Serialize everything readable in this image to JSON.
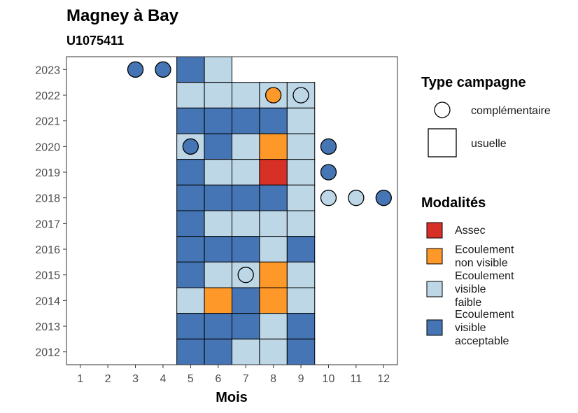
{
  "chart_data": {
    "type": "heatmap",
    "title": "Magney à Bay",
    "subtitle": "U1075411",
    "xlabel": "Mois",
    "ylabel": "",
    "x_ticks": [
      "1",
      "2",
      "3",
      "4",
      "5",
      "6",
      "7",
      "8",
      "9",
      "10",
      "11",
      "12"
    ],
    "y_ticks": [
      "2012",
      "2013",
      "2014",
      "2015",
      "2016",
      "2017",
      "2018",
      "2019",
      "2020",
      "2021",
      "2022",
      "2023"
    ],
    "xlim": [
      0.5,
      12.5
    ],
    "ylim": [
      2011.5,
      2023.5
    ],
    "grid": false,
    "legend_placement": "right",
    "legend_campagne": {
      "title": "Type campagne",
      "items": [
        {
          "key": "complementaire",
          "shape": "circle",
          "label": "complémentaire"
        },
        {
          "key": "usuelle",
          "shape": "square",
          "label": "usuelle"
        }
      ]
    },
    "legend_modalites": {
      "title": "Modalités",
      "items": [
        {
          "code": "A",
          "lines": [
            "Assec"
          ],
          "color": "#d73027"
        },
        {
          "code": "ENV",
          "lines": [
            "Ecoulement",
            "non visible"
          ],
          "color": "#fe9929"
        },
        {
          "code": "EVF",
          "lines": [
            "Ecoulement",
            "visible",
            "faible"
          ],
          "color": "#bdd7e7"
        },
        {
          "code": "EVA",
          "lines": [
            "Ecoulement",
            "visible",
            "acceptable"
          ],
          "color": "#4575b4"
        }
      ]
    },
    "usuelle": [
      {
        "year": 2023,
        "cells": [
          [
            "EVA",
            5
          ],
          [
            "EVF",
            6
          ]
        ]
      },
      {
        "year": 2022,
        "cells": [
          [
            "EVF",
            5
          ],
          [
            "EVF",
            6
          ],
          [
            "EVF",
            7
          ],
          [
            "EVF",
            8
          ],
          [
            "EVF",
            9
          ]
        ]
      },
      {
        "year": 2021,
        "cells": [
          [
            "EVA",
            5
          ],
          [
            "EVA",
            6
          ],
          [
            "EVA",
            7
          ],
          [
            "EVA",
            8
          ],
          [
            "EVF",
            9
          ]
        ]
      },
      {
        "year": 2020,
        "cells": [
          [
            "EVF",
            5
          ],
          [
            "EVA",
            6
          ],
          [
            "EVF",
            7
          ],
          [
            "ENV",
            8
          ],
          [
            "EVF",
            9
          ]
        ]
      },
      {
        "year": 2019,
        "cells": [
          [
            "EVA",
            5
          ],
          [
            "EVF",
            6
          ],
          [
            "EVF",
            7
          ],
          [
            "A",
            8
          ],
          [
            "EVF",
            9
          ]
        ]
      },
      {
        "year": 2018,
        "cells": [
          [
            "EVA",
            5
          ],
          [
            "EVA",
            6
          ],
          [
            "EVA",
            7
          ],
          [
            "EVA",
            8
          ],
          [
            "EVF",
            9
          ]
        ]
      },
      {
        "year": 2017,
        "cells": [
          [
            "EVA",
            5
          ],
          [
            "EVF",
            6
          ],
          [
            "EVF",
            7
          ],
          [
            "EVF",
            8
          ],
          [
            "EVF",
            9
          ]
        ]
      },
      {
        "year": 2016,
        "cells": [
          [
            "EVA",
            5
          ],
          [
            "EVA",
            6
          ],
          [
            "EVA",
            7
          ],
          [
            "EVF",
            8
          ],
          [
            "EVA",
            9
          ]
        ]
      },
      {
        "year": 2015,
        "cells": [
          [
            "EVA",
            5
          ],
          [
            "EVF",
            6
          ],
          [
            "EVF",
            7
          ],
          [
            "ENV",
            8
          ],
          [
            "EVF",
            9
          ]
        ]
      },
      {
        "year": 2014,
        "cells": [
          [
            "EVF",
            5
          ],
          [
            "ENV",
            6
          ],
          [
            "EVA",
            7
          ],
          [
            "ENV",
            8
          ],
          [
            "EVF",
            9
          ]
        ]
      },
      {
        "year": 2013,
        "cells": [
          [
            "EVA",
            5
          ],
          [
            "EVA",
            6
          ],
          [
            "EVA",
            7
          ],
          [
            "EVF",
            8
          ],
          [
            "EVA",
            9
          ]
        ]
      },
      {
        "year": 2012,
        "cells": [
          [
            "EVA",
            5
          ],
          [
            "EVA",
            6
          ],
          [
            "EVF",
            7
          ],
          [
            "EVF",
            8
          ],
          [
            "EVA",
            9
          ]
        ]
      }
    ],
    "complementaire": [
      {
        "year": 2023,
        "month": 3,
        "code": "EVA"
      },
      {
        "year": 2023,
        "month": 4,
        "code": "EVA"
      },
      {
        "year": 2022,
        "month": 8,
        "code": "ENV"
      },
      {
        "year": 2022,
        "month": 9,
        "code": "EVF"
      },
      {
        "year": 2020,
        "month": 5,
        "code": "EVA"
      },
      {
        "year": 2020,
        "month": 10,
        "code": "EVA"
      },
      {
        "year": 2019,
        "month": 10,
        "code": "EVA"
      },
      {
        "year": 2018,
        "month": 10,
        "code": "EVF"
      },
      {
        "year": 2018,
        "month": 11,
        "code": "EVF"
      },
      {
        "year": 2018,
        "month": 12,
        "code": "EVA"
      },
      {
        "year": 2015,
        "month": 7,
        "code": "EVF"
      }
    ]
  }
}
